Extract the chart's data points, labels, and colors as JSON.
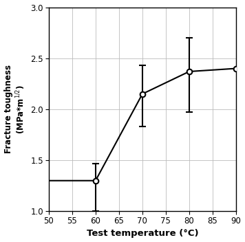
{
  "x": [
    50,
    60,
    70,
    80,
    90
  ],
  "y": [
    1.3,
    1.3,
    2.15,
    2.37,
    2.4
  ],
  "yerr_lower": [
    0.0,
    0.3,
    0.32,
    0.4,
    0.0
  ],
  "yerr_upper": [
    0.0,
    0.17,
    0.28,
    0.33,
    0.0
  ],
  "markers_at": [
    1,
    2,
    3,
    4
  ],
  "xlabel": "Test temperature (°C)",
  "xlim": [
    50,
    90
  ],
  "ylim": [
    1,
    3
  ],
  "xticks": [
    50,
    55,
    60,
    65,
    70,
    75,
    80,
    85,
    90
  ],
  "yticks": [
    1.0,
    1.5,
    2.0,
    2.5,
    3.0
  ],
  "line_color": "#000000",
  "marker_facecolor": "#ffffff",
  "marker_edgecolor": "#000000",
  "grid_color": "#bbbbbb",
  "background_color": "#ffffff",
  "figsize": [
    3.56,
    3.52
  ],
  "dpi": 100
}
